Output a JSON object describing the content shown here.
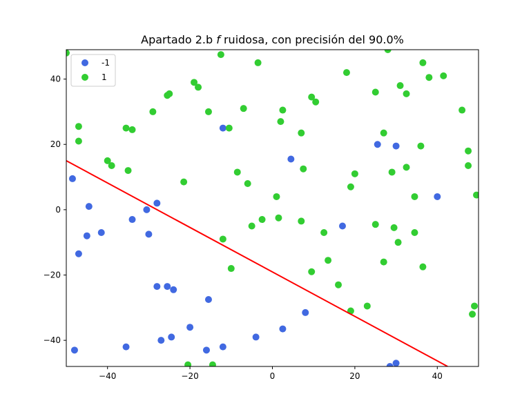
{
  "chart_data": {
    "type": "scatter",
    "title": "Apartado 2.b f ruidosa, con precisión del 90.0%",
    "title_parts": {
      "before": "Apartado 2.b ",
      "italic": "f",
      "after": " ruidosa, con precisión del 90.0%"
    },
    "xlim": [
      -50,
      50
    ],
    "ylim": [
      -48,
      49
    ],
    "x_ticks": [
      -40,
      -20,
      0,
      20,
      40
    ],
    "y_ticks": [
      -40,
      -20,
      0,
      20,
      40
    ],
    "x_tick_labels": [
      "−40",
      "−20",
      "0",
      "20",
      "40"
    ],
    "y_tick_labels": [
      "−40",
      "−20",
      "0",
      "20",
      "40"
    ],
    "grid": false,
    "legend_position": "top-left",
    "series": [
      {
        "name": "-1",
        "color": "#4169e1",
        "points": [
          [
            -48.5,
            9.5
          ],
          [
            -44.5,
            1
          ],
          [
            -47,
            -13.5
          ],
          [
            -45,
            -8
          ],
          [
            -41.5,
            -7
          ],
          [
            -34,
            -3
          ],
          [
            -30.5,
            0
          ],
          [
            -28,
            2
          ],
          [
            -30,
            -7.5
          ],
          [
            -28,
            -23.5
          ],
          [
            -25.5,
            -23.5
          ],
          [
            -24,
            -24.5
          ],
          [
            -27,
            -40
          ],
          [
            -24.5,
            -39
          ],
          [
            -35.5,
            -42
          ],
          [
            -48,
            -43
          ],
          [
            -20,
            -36
          ],
          [
            -15.5,
            -27.5
          ],
          [
            -16,
            -43
          ],
          [
            -12,
            -42
          ],
          [
            -12,
            25
          ],
          [
            4.5,
            15.5
          ],
          [
            -4,
            -39
          ],
          [
            2.5,
            -36.5
          ],
          [
            8,
            -31.5
          ],
          [
            17,
            -5
          ],
          [
            25.5,
            20
          ],
          [
            30,
            19.5
          ],
          [
            40,
            4
          ],
          [
            28.5,
            -48
          ],
          [
            30,
            -47
          ]
        ]
      },
      {
        "name": "1",
        "color": "#32cd32",
        "points": [
          [
            -50,
            48
          ],
          [
            -47,
            25.5
          ],
          [
            -47,
            21
          ],
          [
            -40,
            15
          ],
          [
            -39,
            13.5
          ],
          [
            -35.5,
            25
          ],
          [
            -34,
            24.5
          ],
          [
            -35,
            12
          ],
          [
            -29,
            30
          ],
          [
            -25.5,
            35
          ],
          [
            -25,
            35.5
          ],
          [
            -19,
            39
          ],
          [
            -18,
            37.5
          ],
          [
            -12.5,
            47.5
          ],
          [
            -3.5,
            45
          ],
          [
            -15.5,
            30
          ],
          [
            -10.5,
            25
          ],
          [
            -7,
            31
          ],
          [
            -21.5,
            8.5
          ],
          [
            -8.5,
            11.5
          ],
          [
            -6,
            8
          ],
          [
            -5,
            -5
          ],
          [
            -2.5,
            -3
          ],
          [
            1,
            4
          ],
          [
            1.5,
            -2.5
          ],
          [
            2,
            27
          ],
          [
            2.5,
            30.5
          ],
          [
            7,
            23.5
          ],
          [
            7.5,
            12.5
          ],
          [
            7,
            -3.5
          ],
          [
            9.5,
            34.5
          ],
          [
            10.5,
            33
          ],
          [
            12.5,
            -7
          ],
          [
            13.5,
            -15.5
          ],
          [
            9.5,
            -19
          ],
          [
            -12,
            -9
          ],
          [
            -10,
            -18
          ],
          [
            -20.5,
            -47.5
          ],
          [
            -14.5,
            -47.5
          ],
          [
            16,
            -23
          ],
          [
            18,
            42
          ],
          [
            19,
            7
          ],
          [
            20,
            11
          ],
          [
            19,
            -31
          ],
          [
            23,
            -29.5
          ],
          [
            25,
            36
          ],
          [
            25,
            -4.5
          ],
          [
            27,
            23.5
          ],
          [
            27,
            -16
          ],
          [
            28,
            49
          ],
          [
            29,
            11.5
          ],
          [
            29.5,
            -5.5
          ],
          [
            30.5,
            -10
          ],
          [
            31,
            38
          ],
          [
            32.5,
            35.5
          ],
          [
            32.5,
            13
          ],
          [
            34.5,
            4
          ],
          [
            34.5,
            -7
          ],
          [
            36,
            19.5
          ],
          [
            36.5,
            -17.5
          ],
          [
            36.5,
            45
          ],
          [
            38,
            40.5
          ],
          [
            41.5,
            41
          ],
          [
            46,
            30.5
          ],
          [
            47.5,
            18
          ],
          [
            47.5,
            13.5
          ],
          [
            48.5,
            -32
          ],
          [
            49,
            -29.5
          ],
          [
            49.5,
            4.5
          ]
        ]
      }
    ],
    "line": {
      "color": "#ff0000",
      "points": [
        [
          -50,
          15
        ],
        [
          42.5,
          -48
        ]
      ]
    }
  }
}
